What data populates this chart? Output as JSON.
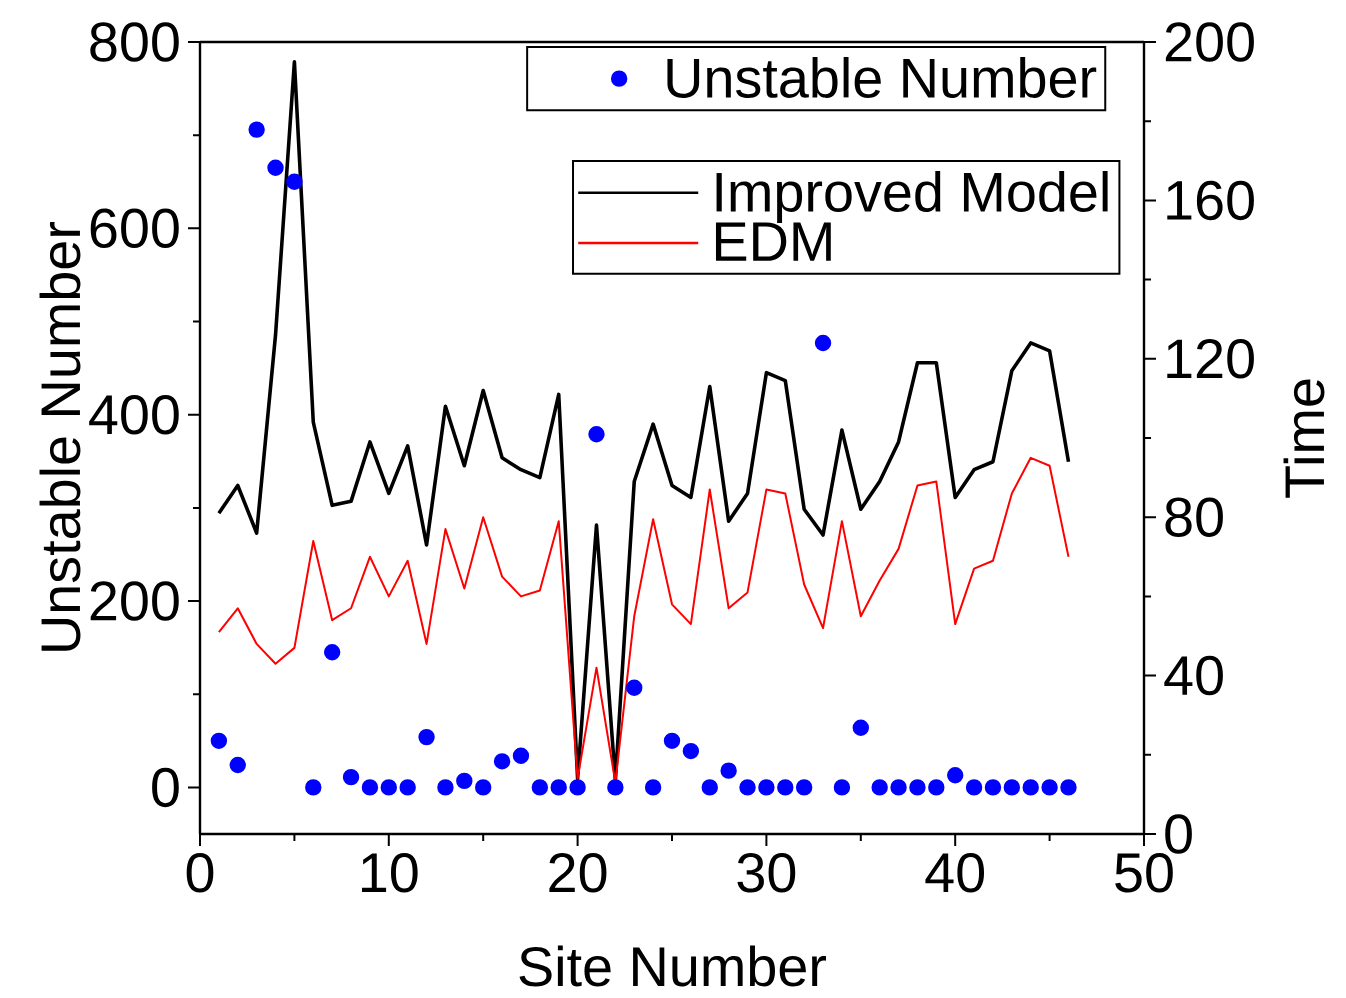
{
  "chart_data": {
    "type": "line",
    "xlabel": "Site Number",
    "ylabel": "Unstable Number",
    "y2label": "Time",
    "xlim": [
      0,
      50
    ],
    "xticks": [
      0,
      10,
      20,
      30,
      40,
      50
    ],
    "ylim": [
      -50,
      800
    ],
    "yticks": [
      0,
      200,
      400,
      600,
      800
    ],
    "y2lim": [
      0,
      200
    ],
    "y2ticks": [
      0,
      40,
      80,
      120,
      160,
      200
    ],
    "legend": "top right",
    "grid": false,
    "x": [
      1,
      2,
      3,
      4,
      5,
      6,
      7,
      8,
      9,
      10,
      11,
      12,
      13,
      14,
      15,
      16,
      17,
      18,
      19,
      20,
      21,
      22,
      23,
      24,
      25,
      26,
      27,
      28,
      29,
      30,
      31,
      32,
      33,
      34,
      35,
      36,
      37,
      38,
      39,
      40,
      41,
      42,
      43,
      44,
      45,
      46
    ],
    "series": [
      {
        "name": "Unstable Number",
        "type": "scatter",
        "marker": "circle",
        "color": "#0000ff",
        "values": [
          50,
          24,
          706,
          665,
          650,
          0,
          145,
          11,
          0,
          0,
          0,
          54,
          0,
          7,
          0,
          28,
          34,
          0,
          0,
          0,
          379,
          0,
          107,
          0,
          50,
          39,
          0,
          18,
          0,
          0,
          0,
          0,
          477,
          0,
          64,
          0,
          0,
          0,
          0,
          13,
          0,
          0,
          0,
          0,
          0,
          0
        ]
      },
      {
        "name": "Improved Model",
        "marker": "none",
        "axis": "y2",
        "color": "#000000",
        "values": [
          81,
          88,
          76,
          126,
          195,
          104,
          83,
          84,
          99,
          86,
          98,
          73,
          108,
          93,
          112,
          95,
          92,
          90,
          111,
          14,
          78,
          13.5,
          89,
          103.5,
          88,
          85,
          113,
          79,
          86,
          116.5,
          114.5,
          82,
          75.5,
          102,
          82,
          89,
          99,
          119,
          119,
          85,
          92,
          94,
          117,
          124,
          122,
          94
        ]
      },
      {
        "name": "EDM",
        "marker": "none",
        "axis": "y2",
        "color": "#ff0000",
        "values": [
          51,
          57,
          48,
          43,
          47,
          74,
          54,
          57,
          70,
          60,
          69,
          48,
          77,
          62,
          80,
          65,
          60,
          61.5,
          79,
          14,
          42,
          13,
          55,
          79.5,
          58,
          53,
          87,
          57,
          61,
          87,
          86,
          63,
          52,
          79,
          55,
          64,
          72,
          88,
          89,
          53,
          67,
          69,
          86,
          95,
          93,
          70
        ]
      }
    ]
  }
}
